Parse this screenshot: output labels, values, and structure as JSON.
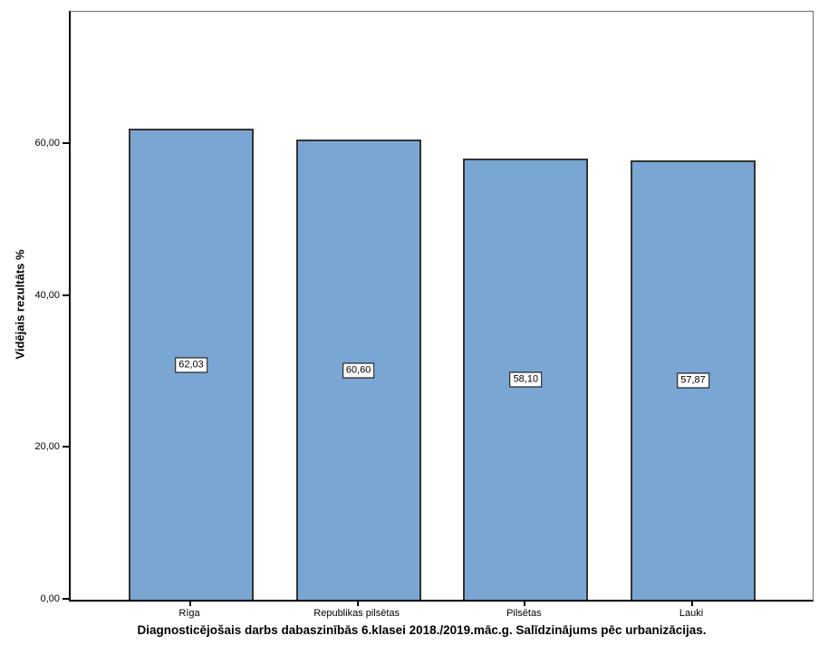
{
  "chart_data": {
    "type": "bar",
    "title": "Diagnosticējošais darbs dabaszinībās 6.klasei 2018./2019.māc.g. Salīdzinājums pēc urbanizācijas.",
    "xlabel": "",
    "ylabel": "Vidējais rezultāts %",
    "categories": [
      "Rīga",
      "Republikas pilsētas",
      "Pilsētas",
      "Lauki"
    ],
    "values": [
      62.03,
      60.6,
      58.1,
      57.87
    ],
    "value_labels": [
      "62,03",
      "60,60",
      "58,10",
      "57,87"
    ],
    "y_tick_values": [
      0,
      20,
      40,
      60
    ],
    "y_tick_labels": [
      "0,00",
      "20,00",
      "40,00",
      "60,00"
    ],
    "ylim": [
      0,
      77.4
    ],
    "grid": false,
    "legend": "none",
    "bar_color": "#7AA6D3",
    "bar_border_color": "#333333",
    "axis_color": "#000000",
    "frame_color": "#6e6e6e",
    "background_color": "#ffffff"
  }
}
